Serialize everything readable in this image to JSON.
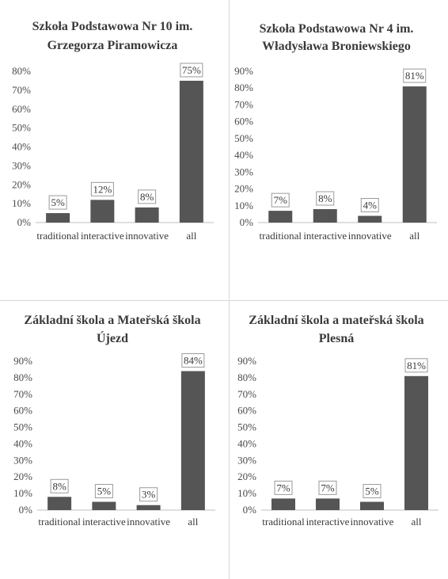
{
  "chart_data": [
    {
      "type": "bar",
      "title_lines": [
        "Szkoła Podstawowa Nr 10 im.",
        "Grzegorza Piramowicza"
      ],
      "categories": [
        "traditional",
        "interactive",
        "innovative",
        "all"
      ],
      "values": [
        5,
        12,
        8,
        75
      ],
      "value_labels": [
        "5%",
        "12%",
        "8%",
        "75%"
      ],
      "yticks": [
        "0%",
        "10%",
        "20%",
        "30%",
        "40%",
        "50%",
        "60%",
        "70%",
        "80%"
      ],
      "ylim": [
        0,
        80
      ],
      "grid": false,
      "bar_color": "#555555"
    },
    {
      "type": "bar",
      "title_lines": [
        "Szkoła Podstawowa Nr 4 im.",
        "Władysława Broniewskiego"
      ],
      "categories": [
        "traditional",
        "interactive",
        "innovative",
        "all"
      ],
      "values": [
        7,
        8,
        4,
        81
      ],
      "value_labels": [
        "7%",
        "8%",
        "4%",
        "81%"
      ],
      "yticks": [
        "0%",
        "10%",
        "20%",
        "30%",
        "40%",
        "50%",
        "60%",
        "70%",
        "80%",
        "90%"
      ],
      "ylim": [
        0,
        90
      ],
      "grid": false,
      "bar_color": "#555555"
    },
    {
      "type": "bar",
      "title_lines": [
        "Základní škola a Mateřská škola",
        "Újezd"
      ],
      "categories": [
        "traditional",
        "interactive",
        "innovative",
        "all"
      ],
      "values": [
        8,
        5,
        3,
        84
      ],
      "value_labels": [
        "8%",
        "5%",
        "3%",
        "84%"
      ],
      "yticks": [
        "0%",
        "10%",
        "20%",
        "30%",
        "40%",
        "50%",
        "60%",
        "70%",
        "80%",
        "90%"
      ],
      "ylim": [
        0,
        90
      ],
      "grid": false,
      "bar_color": "#555555"
    },
    {
      "type": "bar",
      "title_lines": [
        "Základní škola a mateřská škola",
        "Plesná"
      ],
      "categories": [
        "traditional",
        "interactive",
        "innovative",
        "all"
      ],
      "values": [
        7,
        7,
        5,
        81
      ],
      "value_labels": [
        "7%",
        "7%",
        "5%",
        "81%"
      ],
      "yticks": [
        "0%",
        "10%",
        "20%",
        "30%",
        "40%",
        "50%",
        "60%",
        "70%",
        "80%",
        "90%"
      ],
      "ylim": [
        0,
        90
      ],
      "grid": false,
      "bar_color": "#555555"
    }
  ]
}
